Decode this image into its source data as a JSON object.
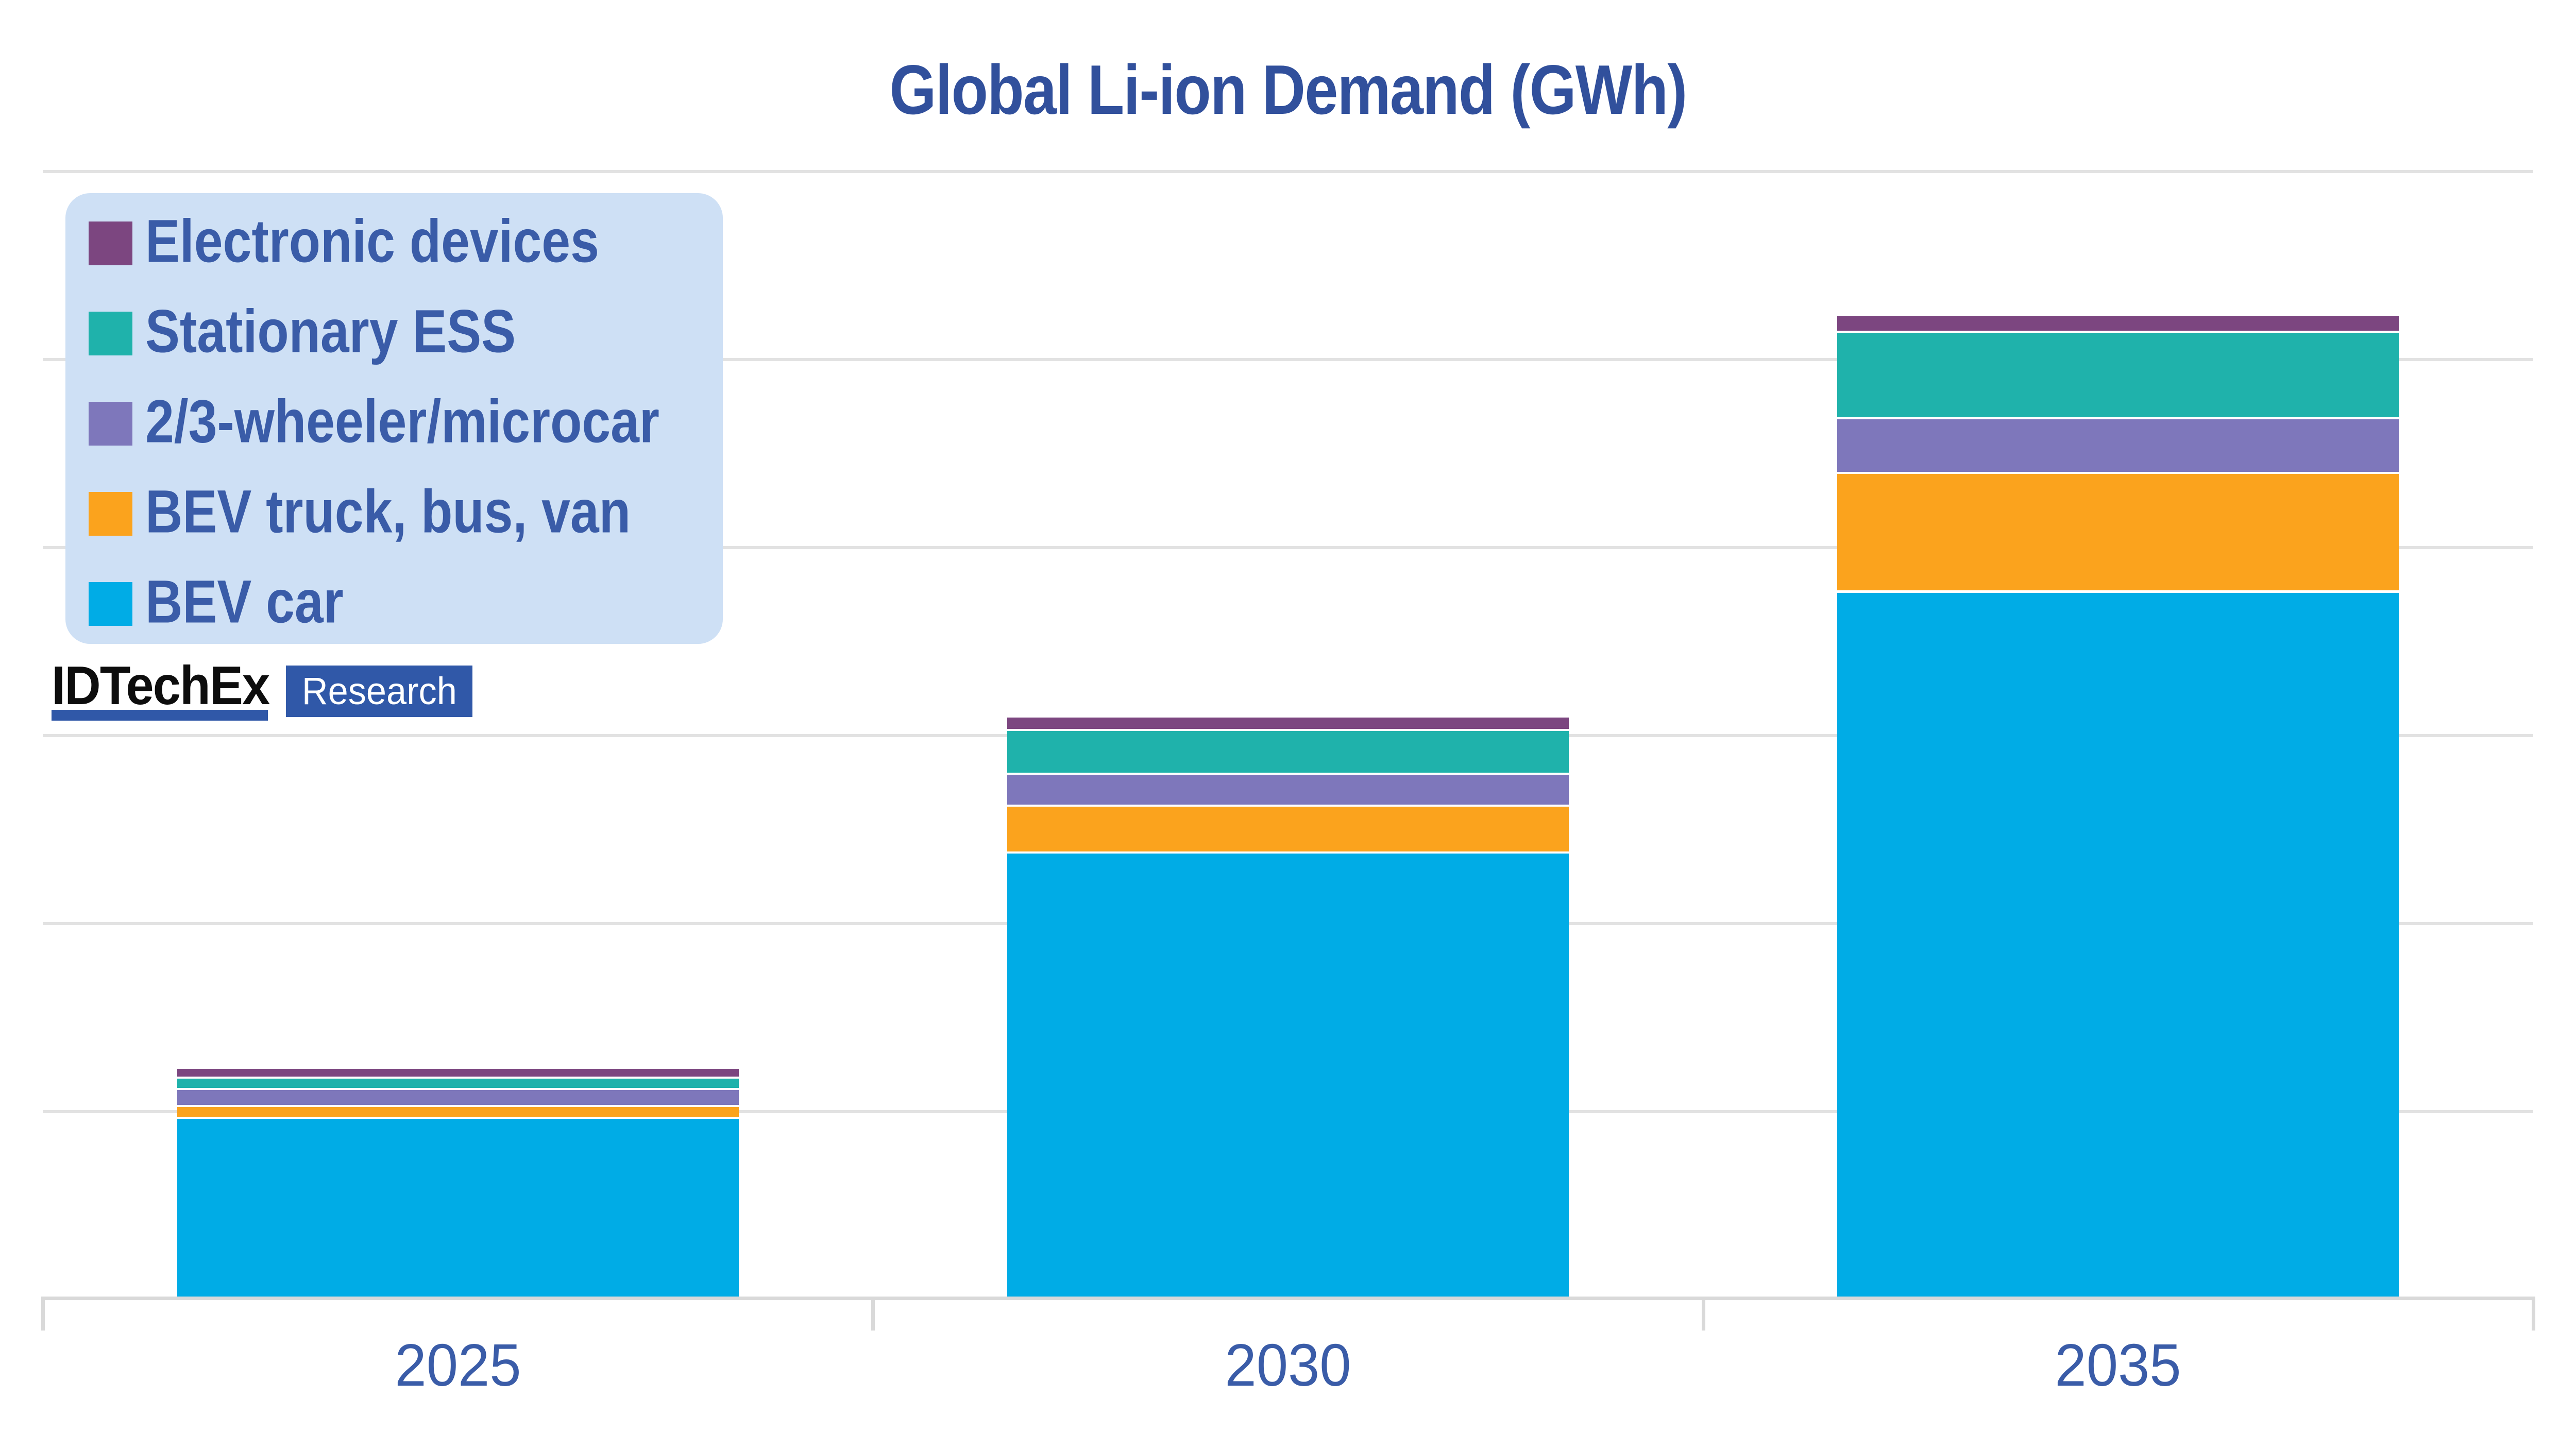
{
  "title": "Global Li-ion Demand (GWh)",
  "colors": {
    "title_text": "#31509c",
    "axis_text": "#3a5ca8",
    "legend_text": "#3a5ca8",
    "legend_background": "#cee0f5",
    "gridline": "#e2e2e2",
    "baseline": "#d9d9d9",
    "logo_accent": "#3058a8",
    "logo_brand_text": "#0d0d0d",
    "segment_gap": "#ffffff"
  },
  "legend": {
    "items": [
      {
        "label": "Electronic devices",
        "color": "#7c4680"
      },
      {
        "label": "Stationary ESS",
        "color": "#1fb2ab"
      },
      {
        "label": "2/3-wheeler/microcar",
        "color": "#7e77bb"
      },
      {
        "label": "BEV truck, bus, van",
        "color": "#fba31d"
      },
      {
        "label": "BEV car",
        "color": "#00ace6"
      }
    ]
  },
  "logo": {
    "brand": "IDTechEx",
    "badge": "Research"
  },
  "x_axis": {
    "labels": [
      "2025",
      "2030",
      "2035"
    ]
  },
  "chart_data": {
    "type": "bar",
    "stacked": true,
    "title": "Global Li-ion Demand (GWh)",
    "categories": [
      "2025",
      "2030",
      "2035"
    ],
    "series": [
      {
        "name": "BEV car",
        "color": "#00ace6",
        "values": [
          475,
          1180,
          1875
        ]
      },
      {
        "name": "BEV truck, bus, van",
        "color": "#fba31d",
        "values": [
          25,
          120,
          310
        ]
      },
      {
        "name": "2/3-wheeler/microcar",
        "color": "#7e77bb",
        "values": [
          40,
          80,
          140
        ]
      },
      {
        "name": "Stationary ESS",
        "color": "#1fb2ab",
        "values": [
          25,
          110,
          225
        ]
      },
      {
        "name": "Electronic devices",
        "color": "#7c4680",
        "values": [
          20,
          30,
          40
        ]
      }
    ],
    "totals": [
      585,
      1520,
      2590
    ],
    "xlabel": "",
    "ylabel": "",
    "ylim": [
      0,
      3000
    ],
    "gridline_step_estimated_gwh": 500,
    "gridlines_horizontal": 7,
    "y_axis_tick_labels_visible": false,
    "grid": true,
    "legend_position": "top-left"
  }
}
